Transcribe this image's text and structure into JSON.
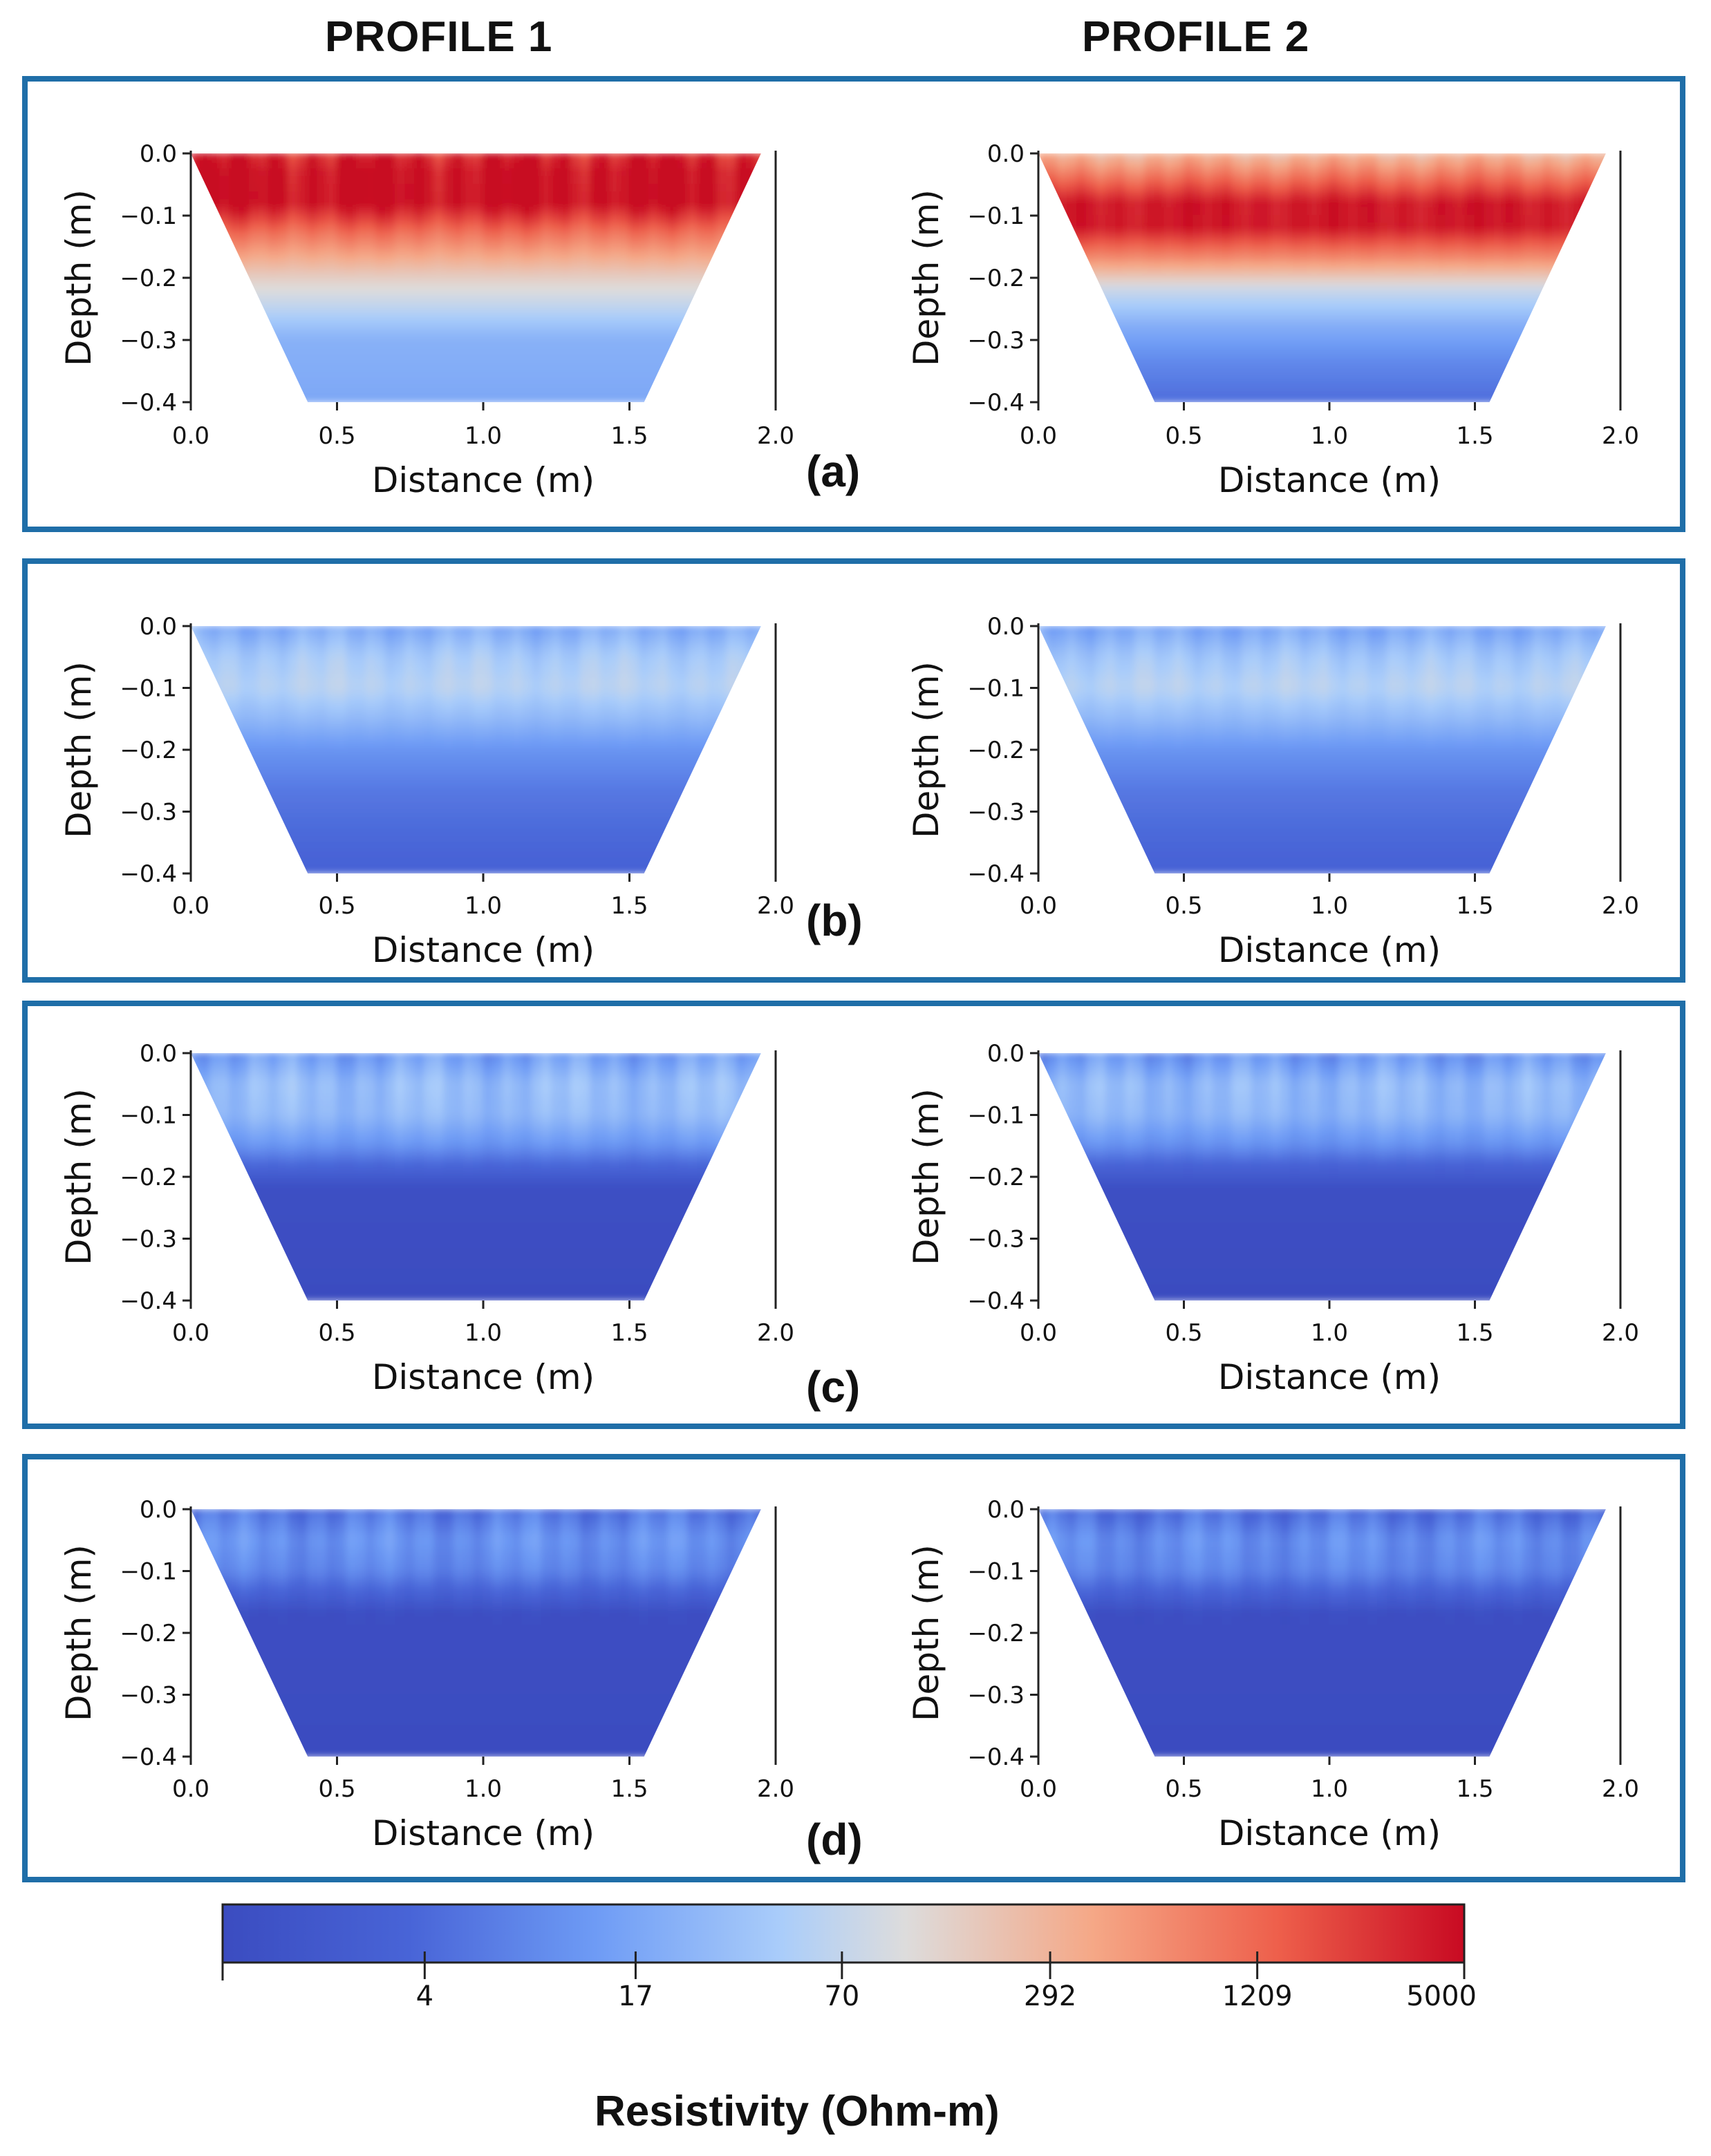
{
  "columns": [
    {
      "title": "PROFILE 1"
    },
    {
      "title": "PROFILE 2"
    }
  ],
  "panels": [
    {
      "letter": "(a)"
    },
    {
      "letter": "(b)"
    },
    {
      "letter": "(c)"
    },
    {
      "letter": "(d)"
    }
  ],
  "colors": {
    "frame": "#1f6ea8",
    "low": "#3b4cc0",
    "mid": "#dddcdc",
    "high": "#c80a22"
  },
  "chart_data": [
    {
      "type": "heatmap",
      "panel": "(a)",
      "profile": "PROFILE 1",
      "xlabel": "Distance (m)",
      "ylabel": "Depth (m)",
      "xlim": [
        0.0,
        2.0
      ],
      "ylim": [
        -0.4,
        0.0
      ],
      "xticks": [
        "0.0",
        "0.5",
        "1.0",
        "1.5",
        "2.0"
      ],
      "yticks": [
        "0.0",
        "−0.1",
        "−0.2",
        "−0.3",
        "−0.4"
      ],
      "trapezoid": {
        "top": [
          0.0,
          1.95
        ],
        "bottom": [
          0.4,
          1.55
        ]
      },
      "depth_profile_log_resistivity": [
        [
          0.0,
          3.5
        ],
        [
          0.03,
          3.7
        ],
        [
          0.08,
          3.7
        ],
        [
          0.13,
          3.0
        ],
        [
          0.2,
          2.2
        ],
        [
          0.25,
          1.8
        ],
        [
          0.3,
          1.35
        ],
        [
          0.4,
          1.25
        ]
      ],
      "streak_amplitude": 0.35
    },
    {
      "type": "heatmap",
      "panel": "(a)",
      "profile": "PROFILE 2",
      "xlabel": "Distance (m)",
      "ylabel": "Depth (m)",
      "xlim": [
        0.0,
        2.0
      ],
      "ylim": [
        -0.4,
        0.0
      ],
      "xticks": [
        "0.0",
        "0.5",
        "1.0",
        "1.5",
        "2.0"
      ],
      "yticks": [
        "0.0",
        "−0.1",
        "−0.2",
        "−0.3",
        "−0.4"
      ],
      "trapezoid": {
        "top": [
          0.0,
          1.95
        ],
        "bottom": [
          0.4,
          1.55
        ]
      },
      "depth_profile_log_resistivity": [
        [
          0.0,
          2.4
        ],
        [
          0.04,
          3.0
        ],
        [
          0.08,
          3.6
        ],
        [
          0.12,
          3.6
        ],
        [
          0.17,
          2.8
        ],
        [
          0.22,
          1.9
        ],
        [
          0.28,
          1.3
        ],
        [
          0.34,
          0.9
        ],
        [
          0.4,
          0.65
        ]
      ],
      "streak_amplitude": 0.2
    },
    {
      "type": "heatmap",
      "panel": "(b)",
      "profile": "PROFILE 1",
      "xlabel": "Distance (m)",
      "ylabel": "Depth (m)",
      "xlim": [
        0.0,
        2.0
      ],
      "ylim": [
        -0.4,
        0.0
      ],
      "xticks": [
        "0.0",
        "0.5",
        "1.0",
        "1.5",
        "2.0"
      ],
      "yticks": [
        "0.0",
        "−0.1",
        "−0.2",
        "−0.3",
        "−0.4"
      ],
      "trapezoid": {
        "top": [
          0.0,
          1.95
        ],
        "bottom": [
          0.4,
          1.55
        ]
      },
      "depth_profile_log_resistivity": [
        [
          0.0,
          1.25
        ],
        [
          0.05,
          1.65
        ],
        [
          0.1,
          1.78
        ],
        [
          0.15,
          1.45
        ],
        [
          0.2,
          1.05
        ],
        [
          0.27,
          0.75
        ],
        [
          0.34,
          0.6
        ],
        [
          0.4,
          0.5
        ]
      ],
      "streak_amplitude": 0.2
    },
    {
      "type": "heatmap",
      "panel": "(b)",
      "profile": "PROFILE 2",
      "xlabel": "Distance (m)",
      "ylabel": "Depth (m)",
      "xlim": [
        0.0,
        2.0
      ],
      "ylim": [
        -0.4,
        0.0
      ],
      "xticks": [
        "0.0",
        "0.5",
        "1.0",
        "1.5",
        "2.0"
      ],
      "yticks": [
        "0.0",
        "−0.1",
        "−0.2",
        "−0.3",
        "−0.4"
      ],
      "trapezoid": {
        "top": [
          0.0,
          1.95
        ],
        "bottom": [
          0.4,
          1.55
        ]
      },
      "depth_profile_log_resistivity": [
        [
          0.0,
          1.2
        ],
        [
          0.05,
          1.6
        ],
        [
          0.1,
          1.78
        ],
        [
          0.15,
          1.45
        ],
        [
          0.2,
          1.05
        ],
        [
          0.27,
          0.75
        ],
        [
          0.34,
          0.6
        ],
        [
          0.4,
          0.5
        ]
      ],
      "streak_amplitude": 0.2
    },
    {
      "type": "heatmap",
      "panel": "(c)",
      "profile": "PROFILE 1",
      "xlabel": "Distance (m)",
      "ylabel": "Depth (m)",
      "xlim": [
        0.0,
        2.0
      ],
      "ylim": [
        -0.4,
        0.0
      ],
      "xticks": [
        "0.0",
        "0.5",
        "1.0",
        "1.5",
        "2.0"
      ],
      "yticks": [
        "0.0",
        "−0.1",
        "−0.2",
        "−0.3",
        "−0.4"
      ],
      "trapezoid": {
        "top": [
          0.0,
          1.95
        ],
        "bottom": [
          0.4,
          1.55
        ]
      },
      "depth_profile_log_resistivity": [
        [
          0.0,
          1.1
        ],
        [
          0.05,
          1.5
        ],
        [
          0.1,
          1.45
        ],
        [
          0.15,
          1.05
        ],
        [
          0.18,
          0.6
        ],
        [
          0.22,
          0.08
        ],
        [
          0.4,
          0.0
        ]
      ],
      "streak_amplitude": 0.3
    },
    {
      "type": "heatmap",
      "panel": "(c)",
      "profile": "PROFILE 2",
      "xlabel": "Distance (m)",
      "ylabel": "Depth (m)",
      "xlim": [
        0.0,
        2.0
      ],
      "ylim": [
        -0.4,
        0.0
      ],
      "xticks": [
        "0.0",
        "0.5",
        "1.0",
        "1.5",
        "2.0"
      ],
      "yticks": [
        "0.0",
        "−0.1",
        "−0.2",
        "−0.3",
        "−0.4"
      ],
      "trapezoid": {
        "top": [
          0.0,
          1.95
        ],
        "bottom": [
          0.4,
          1.55
        ]
      },
      "depth_profile_log_resistivity": [
        [
          0.0,
          1.0
        ],
        [
          0.05,
          1.45
        ],
        [
          0.1,
          1.4
        ],
        [
          0.15,
          1.0
        ],
        [
          0.18,
          0.55
        ],
        [
          0.22,
          0.08
        ],
        [
          0.4,
          0.0
        ]
      ],
      "streak_amplitude": 0.3
    },
    {
      "type": "heatmap",
      "panel": "(d)",
      "profile": "PROFILE 1",
      "xlabel": "Distance (m)",
      "ylabel": "Depth (m)",
      "xlim": [
        0.0,
        2.0
      ],
      "ylim": [
        -0.4,
        0.0
      ],
      "xticks": [
        "0.0",
        "0.5",
        "1.0",
        "1.5",
        "2.0"
      ],
      "yticks": [
        "0.0",
        "−0.1",
        "−0.2",
        "−0.3",
        "−0.4"
      ],
      "trapezoid": {
        "top": [
          0.0,
          1.95
        ],
        "bottom": [
          0.4,
          1.55
        ]
      },
      "depth_profile_log_resistivity": [
        [
          0.0,
          0.7
        ],
        [
          0.05,
          1.05
        ],
        [
          0.1,
          0.9
        ],
        [
          0.14,
          0.45
        ],
        [
          0.17,
          0.05
        ],
        [
          0.4,
          0.0
        ]
      ],
      "streak_amplitude": 0.3
    },
    {
      "type": "heatmap",
      "panel": "(d)",
      "profile": "PROFILE 2",
      "xlabel": "Distance (m)",
      "ylabel": "Depth (m)",
      "xlim": [
        0.0,
        2.0
      ],
      "ylim": [
        -0.4,
        0.0
      ],
      "xticks": [
        "0.0",
        "0.5",
        "1.0",
        "1.5",
        "2.0"
      ],
      "yticks": [
        "0.0",
        "−0.1",
        "−0.2",
        "−0.3",
        "−0.4"
      ],
      "trapezoid": {
        "top": [
          0.0,
          1.95
        ],
        "bottom": [
          0.4,
          1.55
        ]
      },
      "depth_profile_log_resistivity": [
        [
          0.0,
          0.6
        ],
        [
          0.05,
          1.0
        ],
        [
          0.1,
          0.9
        ],
        [
          0.14,
          0.45
        ],
        [
          0.17,
          0.05
        ],
        [
          0.4,
          0.0
        ]
      ],
      "streak_amplitude": 0.3
    }
  ],
  "colorbar": {
    "label": "Resistivity (Ohm-m)",
    "scale": "log",
    "min": 1,
    "max": 5000,
    "ticks": [
      4,
      17,
      70,
      292,
      1209,
      5000
    ],
    "tick_labels": [
      "4",
      "17",
      "70",
      "292",
      "1209",
      "5000"
    ]
  }
}
